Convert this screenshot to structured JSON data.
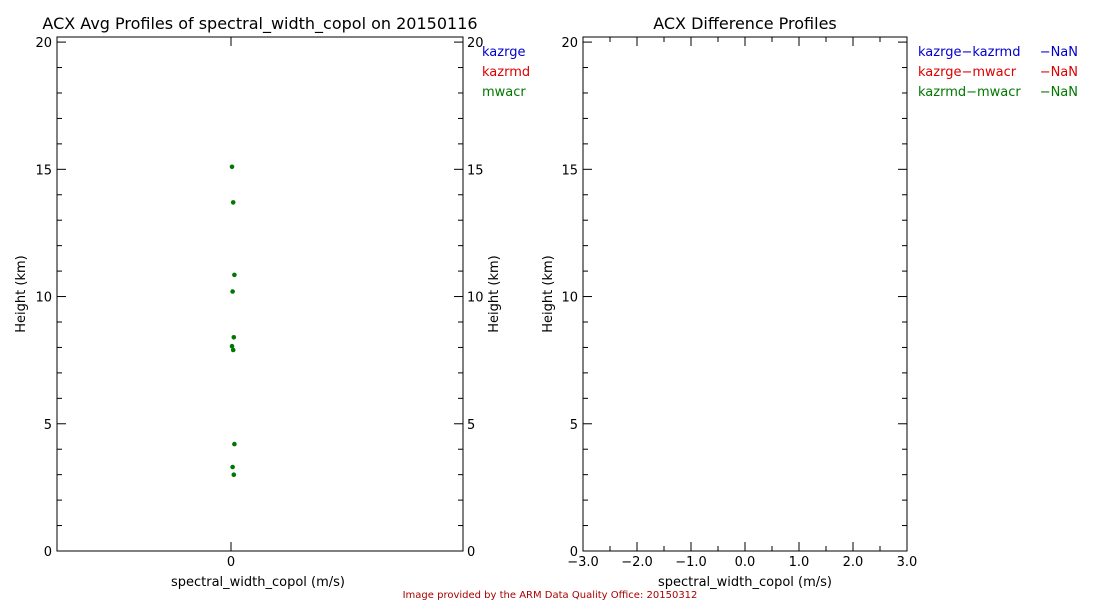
{
  "credit": "Image provided by the ARM Data Quality Office: 20150312",
  "chart_data": [
    {
      "type": "scatter",
      "title": "ACX Avg Profiles of spectral_width_copol on 20150116",
      "xlabel": "spectral_width_copol (m/s)",
      "ylabel": "Height (km)",
      "ylabel_right": "Height (km)",
      "ylim": [
        0,
        20.2
      ],
      "yticks": [
        "0",
        "5",
        "10",
        "15",
        "20"
      ],
      "xticks": [
        "0"
      ],
      "legend": [
        {
          "label": "kazrge",
          "color": "#0000cc"
        },
        {
          "label": "kazrmd",
          "color": "#dd0000"
        },
        {
          "label": "mwacr",
          "color": "#007700"
        }
      ],
      "series": [
        {
          "name": "mwacr",
          "color": "#007700",
          "points": [
            {
              "x": 0,
              "y": 15.1
            },
            {
              "x": 0,
              "y": 13.7
            },
            {
              "x": 0,
              "y": 10.85
            },
            {
              "x": 0,
              "y": 10.2
            },
            {
              "x": 0,
              "y": 8.4
            },
            {
              "x": 0,
              "y": 8.05
            },
            {
              "x": 0,
              "y": 7.9
            },
            {
              "x": 0,
              "y": 4.2
            },
            {
              "x": 0,
              "y": 3.3
            },
            {
              "x": 0,
              "y": 3.0
            }
          ]
        }
      ]
    },
    {
      "type": "line",
      "title": "ACX Difference Profiles",
      "xlabel": "spectral_width_copol (m/s)",
      "ylabel": "Height (km)",
      "xlim": [
        -3.0,
        3.0
      ],
      "ylim": [
        0,
        20.2
      ],
      "xticks": [
        "−3.0",
        "−2.0",
        "−1.0",
        "0.0",
        "1.0",
        "2.0",
        "3.0"
      ],
      "yticks": [
        "0",
        "5",
        "10",
        "15",
        "20"
      ],
      "legend": [
        {
          "label": "kazrge−kazrmd",
          "value": "−NaN",
          "color": "#0000cc"
        },
        {
          "label": "kazrge−mwacr",
          "value": "−NaN",
          "color": "#dd0000"
        },
        {
          "label": "kazrmd−mwacr",
          "value": "−NaN",
          "color": "#007700"
        }
      ],
      "series": []
    }
  ]
}
